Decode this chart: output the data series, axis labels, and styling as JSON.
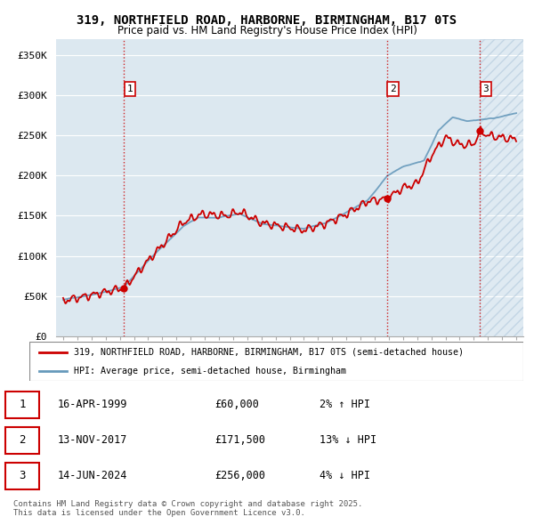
{
  "title_line1": "319, NORTHFIELD ROAD, HARBORNE, BIRMINGHAM, B17 0TS",
  "title_line2": "Price paid vs. HM Land Registry's House Price Index (HPI)",
  "ylabel_ticks": [
    "£0",
    "£50K",
    "£100K",
    "£150K",
    "£200K",
    "£250K",
    "£300K",
    "£350K"
  ],
  "ytick_values": [
    0,
    50000,
    100000,
    150000,
    200000,
    250000,
    300000,
    350000
  ],
  "ylim": [
    0,
    370000
  ],
  "xlim_start": 1994.5,
  "xlim_end": 2027.5,
  "background_color": "#ffffff",
  "plot_bg_color": "#dce8f0",
  "grid_color": "#ffffff",
  "sale_dates": [
    1999.29,
    2017.87,
    2024.45
  ],
  "sale_prices": [
    60000,
    171500,
    256000
  ],
  "sale_labels": [
    "1",
    "2",
    "3"
  ],
  "vline_color": "#cc0000",
  "red_line_color": "#cc0000",
  "blue_line_color": "#6699bb",
  "legend_label_red": "319, NORTHFIELD ROAD, HARBORNE, BIRMINGHAM, B17 0TS (semi-detached house)",
  "legend_label_blue": "HPI: Average price, semi-detached house, Birmingham",
  "table_entries": [
    {
      "label": "1",
      "date": "16-APR-1999",
      "price": "£60,000",
      "hpi": "2% ↑ HPI"
    },
    {
      "label": "2",
      "date": "13-NOV-2017",
      "price": "£171,500",
      "hpi": "13% ↓ HPI"
    },
    {
      "label": "3",
      "date": "14-JUN-2024",
      "price": "£256,000",
      "hpi": "4% ↓ HPI"
    }
  ],
  "footnote": "Contains HM Land Registry data © Crown copyright and database right 2025.\nThis data is licensed under the Open Government Licence v3.0."
}
